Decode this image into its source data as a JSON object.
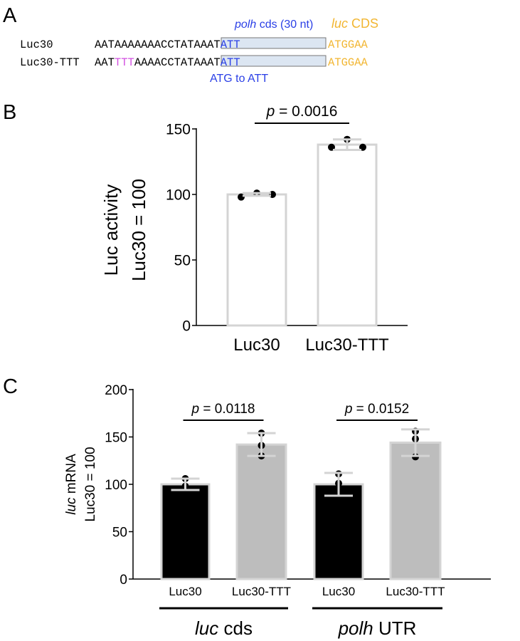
{
  "panel_labels": {
    "a": "A",
    "b": "B",
    "c": "C"
  },
  "panel_a": {
    "polh_label_italic": "polh",
    "polh_label_rest": " cds (30 nt)",
    "luc_label_italic": "luc",
    "luc_label_rest": " CDS",
    "mutation_note": "ATG to ATT",
    "rows": [
      {
        "name": "Luc30",
        "prefix": "AAT",
        "insert": "AAA",
        "middle": "AAAACCTATAAAT",
        "start": "ATT",
        "luc": "ATGGAA"
      },
      {
        "name": "Luc30-TTT",
        "prefix": "AAT",
        "insert": "TTT",
        "middle": "AAAACCTATAAAT",
        "start": "ATT",
        "luc": "ATGGAA"
      }
    ],
    "colors": {
      "insert": "#d24fe0",
      "start": "#2a3fe6",
      "luc": "#f2b632",
      "box": "#dce6f2"
    }
  },
  "chart_data": [
    {
      "type": "bar",
      "panel": "B",
      "ylabel_line1": "Luc activity",
      "ylabel_line2": "Luc30 = 100",
      "ylim": [
        0,
        150
      ],
      "yticks": [
        "0",
        "50",
        "100",
        "150"
      ],
      "categories": [
        "Luc30",
        "Luc30-TTT"
      ],
      "values": [
        100,
        138
      ],
      "error": [
        [
          99,
          101
        ],
        [
          134,
          142
        ]
      ],
      "points": [
        [
          98,
          101,
          100
        ],
        [
          136,
          142,
          136
        ]
      ],
      "bar_fill": [
        "#ffffff",
        "#ffffff"
      ],
      "bar_stroke": "#d4d4d4",
      "comparisons": [
        {
          "label_italic": "p",
          "label_rest": " = 0.0016",
          "from": 0,
          "to": 1
        }
      ]
    },
    {
      "type": "bar",
      "panel": "C",
      "ylabel_line1_italic": "luc",
      "ylabel_line1_rest": " mRNA",
      "ylabel_line2": "Luc30  = 100",
      "ylim": [
        0,
        200
      ],
      "yticks": [
        "0",
        "50",
        "100",
        "150",
        "200"
      ],
      "categories": [
        "Luc30",
        "Luc30-TTT",
        "Luc30",
        "Luc30-TTT"
      ],
      "groups": [
        {
          "label_italic": "luc",
          "label_rest": " cds",
          "members": [
            0,
            1
          ]
        },
        {
          "label_italic": "polh",
          "label_rest": " UTR",
          "members": [
            2,
            3
          ]
        }
      ],
      "values": [
        100,
        142,
        100,
        144
      ],
      "error": [
        [
          94,
          106
        ],
        [
          130,
          154
        ],
        [
          88,
          112
        ],
        [
          130,
          158
        ]
      ],
      "points": [
        [
          106,
          98,
          97
        ],
        [
          154,
          141,
          130
        ],
        [
          111,
          101,
          88
        ],
        [
          156,
          148,
          129
        ]
      ],
      "bar_fill": [
        "#000000",
        "#bdbdbd",
        "#000000",
        "#bdbdbd"
      ],
      "bar_stroke": "#d4d4d4",
      "comparisons": [
        {
          "label_italic": "p",
          "label_rest": " = 0.0118",
          "from": 0,
          "to": 1
        },
        {
          "label_italic": "p",
          "label_rest": " = 0.0152",
          "from": 2,
          "to": 3
        }
      ]
    }
  ]
}
